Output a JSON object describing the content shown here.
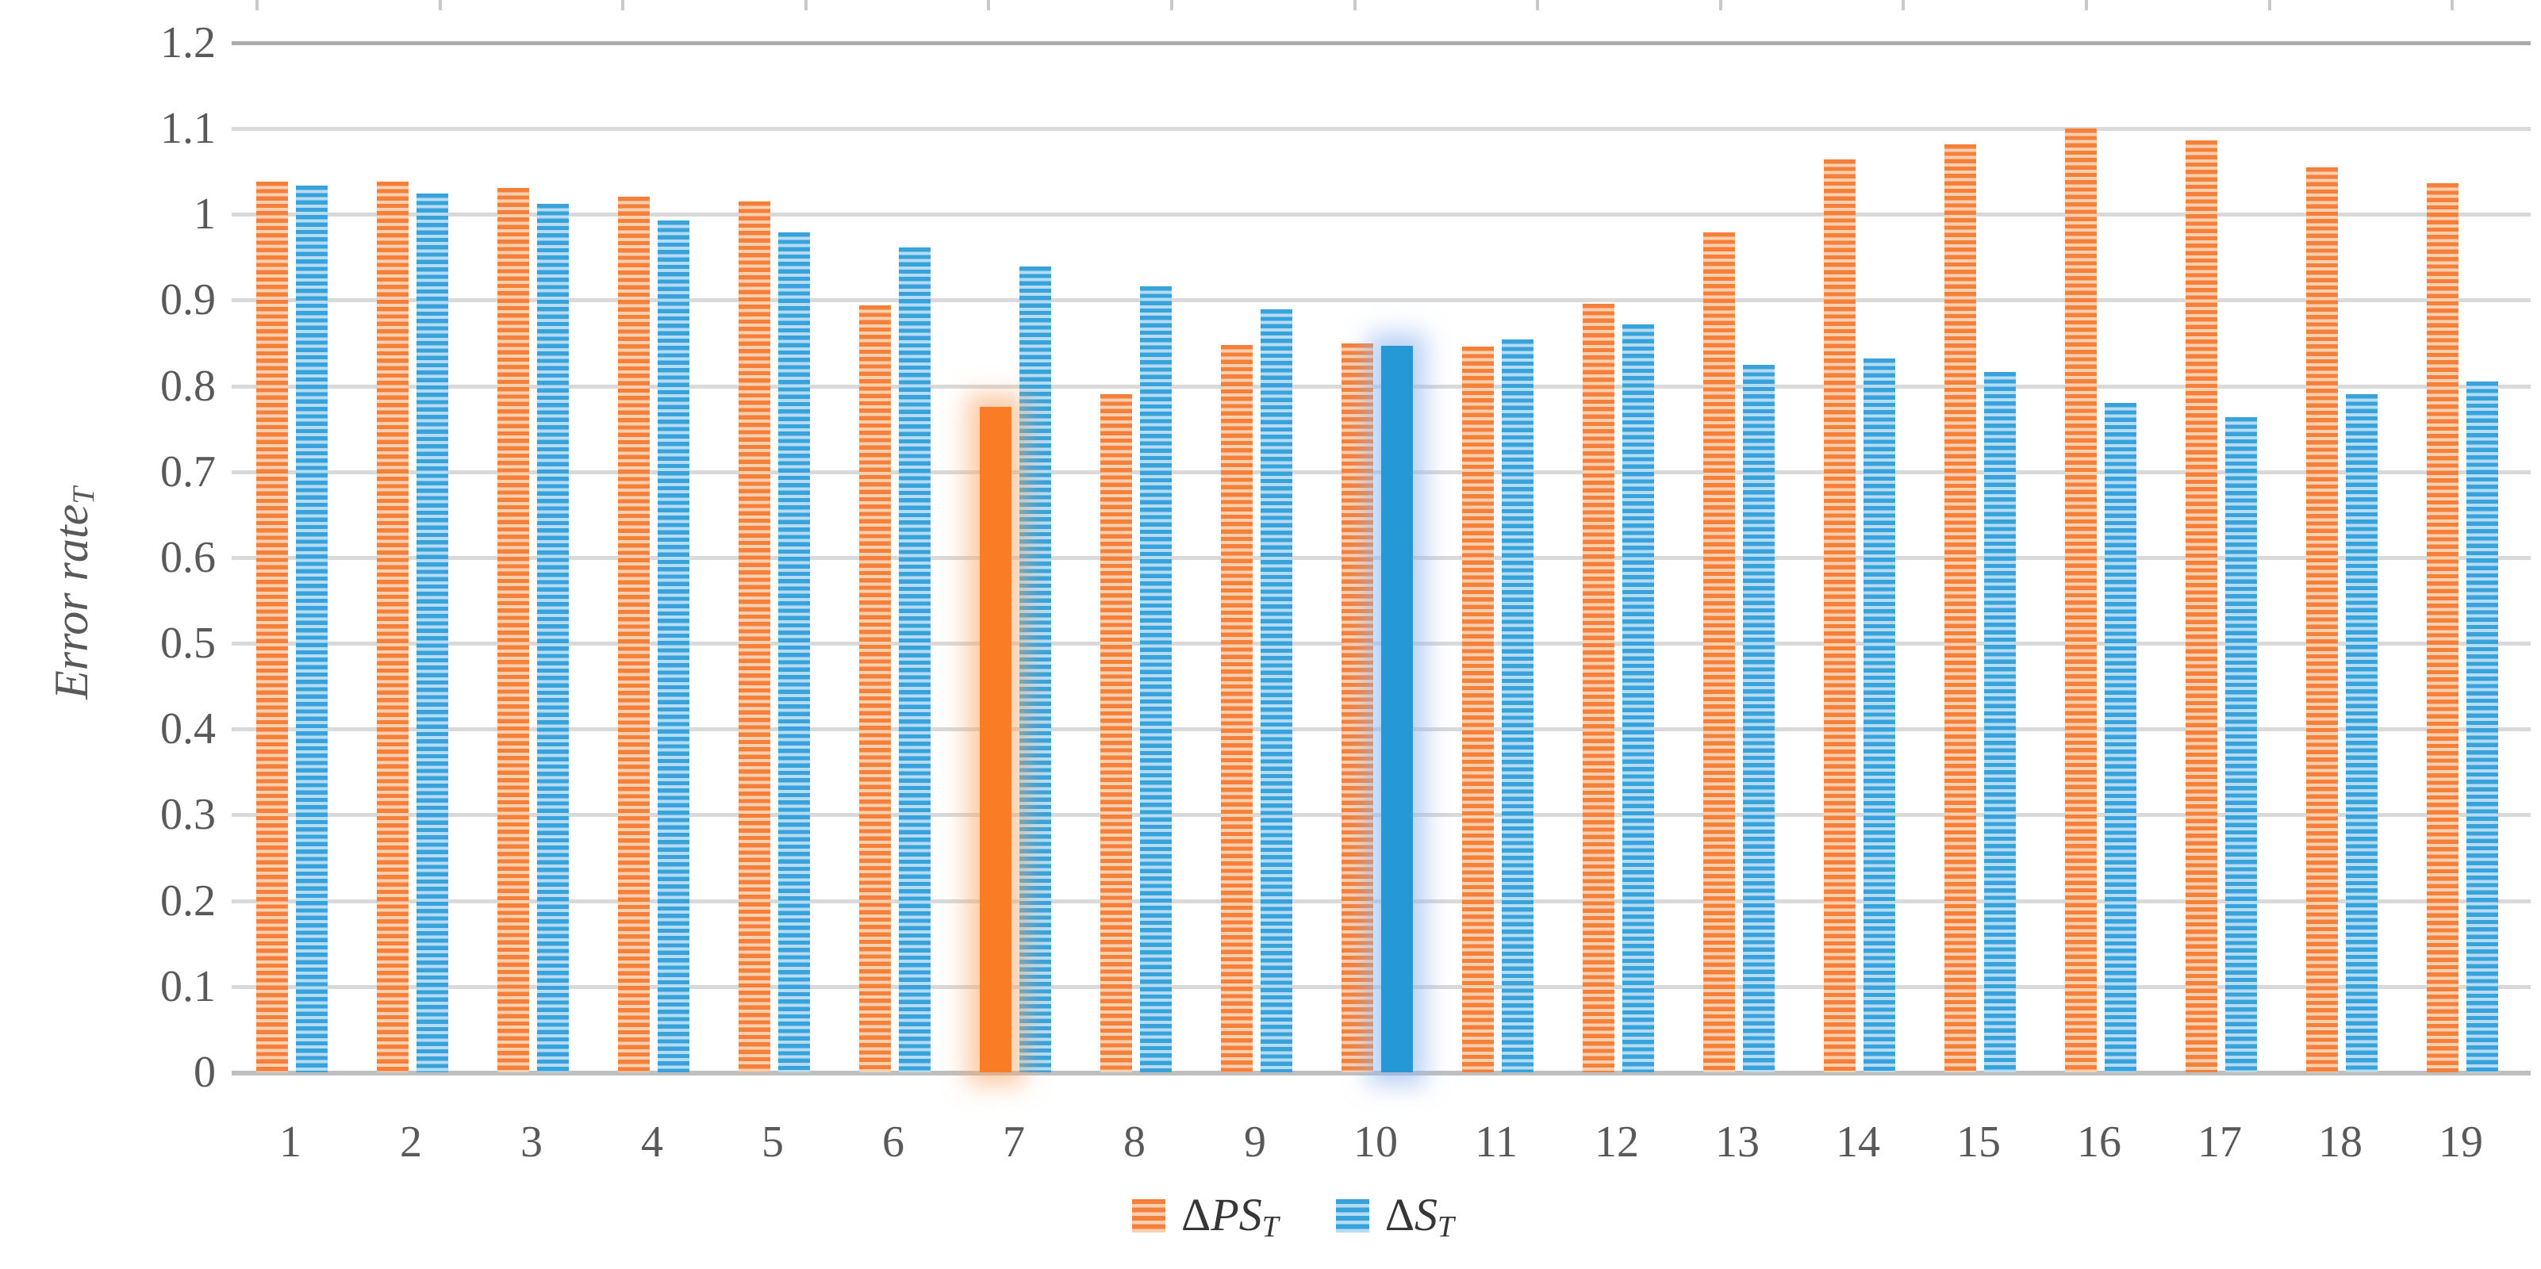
{
  "chart_data": {
    "type": "bar",
    "title": "",
    "xlabel": "",
    "ylabel": {
      "text": "Error rate",
      "sub": "T"
    },
    "categories": [
      "1",
      "2",
      "3",
      "4",
      "5",
      "6",
      "7",
      "8",
      "9",
      "10",
      "11",
      "12",
      "13",
      "14",
      "15",
      "16",
      "17",
      "18",
      "19"
    ],
    "series": [
      {
        "name": "ΔPS_T",
        "legend": {
          "delta": "Δ",
          "base": "PS",
          "sub": "T"
        },
        "pattern": "horizontal-stripes",
        "stripe_dark": "#F4803A",
        "stripe_light": "#FAD0B1",
        "solid_fill": "#FA7D26",
        "glow": "rgba(249,166,103,0.60)",
        "values": [
          1.038,
          1.038,
          1.031,
          1.021,
          1.015,
          0.894,
          0.776,
          0.79,
          0.848,
          0.85,
          0.846,
          0.896,
          0.979,
          1.064,
          1.082,
          1.1,
          1.086,
          1.055,
          1.036
        ]
      },
      {
        "name": "ΔS_T",
        "legend": {
          "delta": "Δ",
          "base": "S",
          "sub": "T"
        },
        "pattern": "horizontal-stripes",
        "stripe_dark": "#38A2DB",
        "stripe_light": "#B5DCF2",
        "solid_fill": "#2598D6",
        "glow": "rgba(146,183,240,0.65)",
        "values": [
          1.034,
          1.024,
          1.012,
          0.993,
          0.979,
          0.961,
          0.939,
          0.916,
          0.889,
          0.847,
          0.854,
          0.872,
          0.825,
          0.832,
          0.816,
          0.78,
          0.764,
          0.79,
          0.805
        ]
      }
    ],
    "highlights": [
      {
        "series": "ΔPS_T",
        "category": "7",
        "style": "solid-fill-with-glow"
      },
      {
        "series": "ΔS_T",
        "category": "10",
        "style": "solid-fill-with-glow"
      }
    ],
    "ylim": [
      0,
      1.2
    ],
    "ytick_labels": [
      "0",
      "0.1",
      "0.2",
      "0.3",
      "0.4",
      "0.5",
      "0.6",
      "0.7",
      "0.8",
      "0.9",
      "1",
      "1.1",
      "1.2"
    ],
    "grid": "horizontal",
    "gridline_color": "#D9D9D9",
    "top_gridline_color": "#ABABAB",
    "zero_line_color": "#BFBFBF",
    "axis_text_color": "#595959",
    "legend_position": "bottom-center",
    "top_tick_count": 13
  }
}
